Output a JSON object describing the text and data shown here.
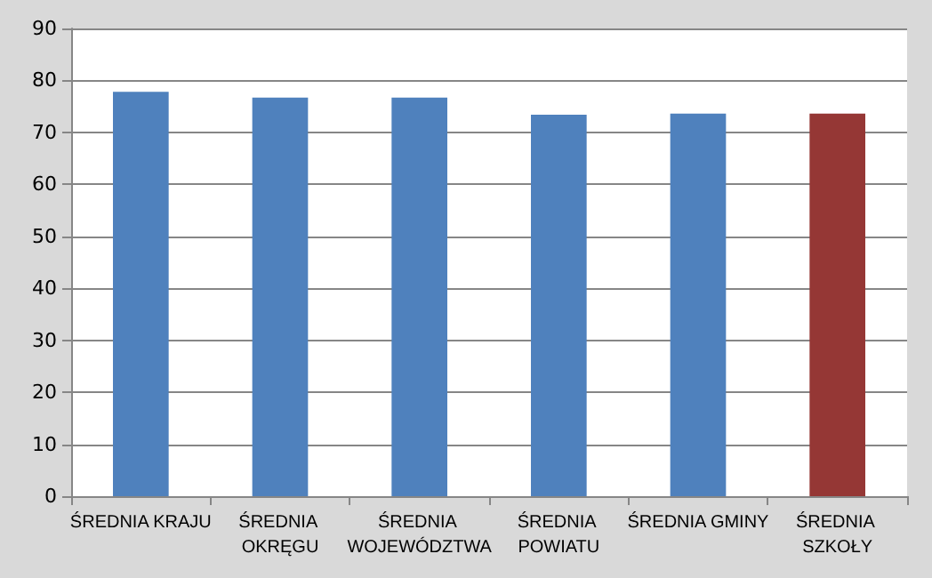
{
  "chart_data": {
    "type": "bar",
    "categories": [
      "ŚREDNIA KRAJU",
      "ŚREDNIA OKRĘGU",
      "ŚREDNIA WOJEWÓDZTWA",
      "ŚREDNIA POWIATU",
      "ŚREDNIA GMINY",
      "ŚREDNIA SZKOŁY"
    ],
    "values": [
      77.8,
      76.7,
      76.7,
      73.4,
      73.6,
      73.6
    ],
    "colors": [
      "#4f81bd",
      "#4f81bd",
      "#4f81bd",
      "#4f81bd",
      "#4f81bd",
      "#953735"
    ],
    "ylim": [
      0,
      90
    ],
    "yticks": [
      0,
      10,
      20,
      30,
      40,
      50,
      60,
      70,
      80,
      90
    ],
    "grid": "y"
  }
}
